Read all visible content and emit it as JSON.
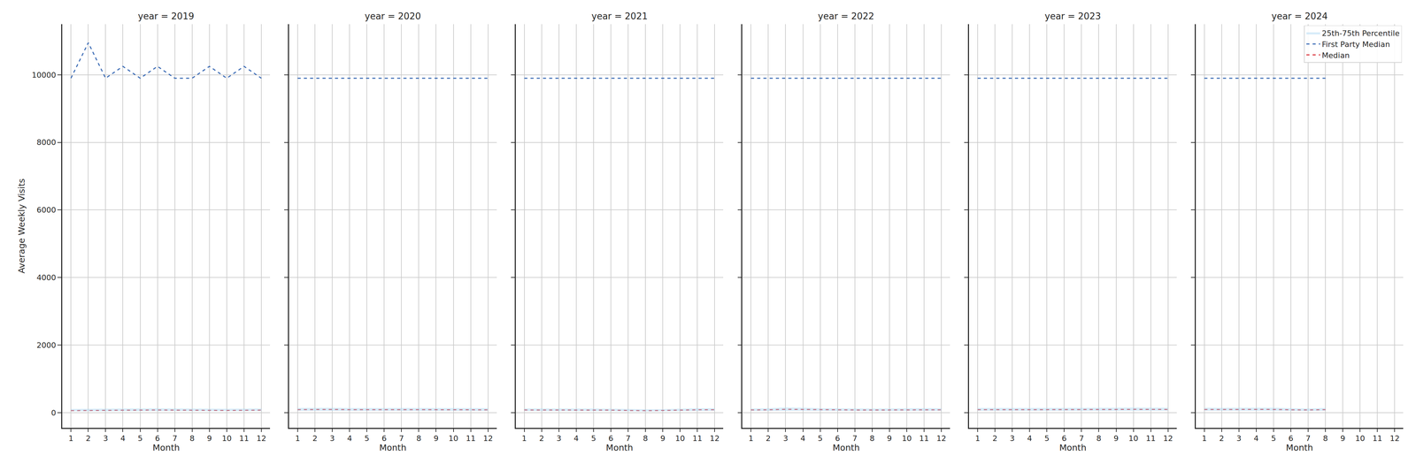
{
  "chart_data": [
    {
      "type": "line",
      "title": "year = 2019",
      "x_label": "Month",
      "y_label": "Average Weekly Visits",
      "x": [
        1,
        2,
        3,
        4,
        5,
        6,
        7,
        8,
        9,
        10,
        11,
        12
      ],
      "xlim": [
        0.5,
        12.5
      ],
      "xticks": [
        1,
        2,
        3,
        4,
        5,
        6,
        7,
        8,
        9,
        10,
        11,
        12
      ],
      "ylim": [
        -450,
        11500
      ],
      "yticks": [
        0,
        2000,
        4000,
        6000,
        8000,
        10000
      ],
      "grid": true,
      "series": [
        {
          "name": "Median",
          "color": "#d9333b",
          "line_style": "dashed",
          "values": [
            60,
            65,
            70,
            75,
            78,
            80,
            75,
            72,
            68,
            65,
            70,
            75
          ]
        },
        {
          "name": "First Party Median",
          "color": "#3b6bb5",
          "line_style": "dashed",
          "values": [
            9900,
            10950,
            9900,
            10250,
            9900,
            10250,
            9900,
            9900,
            10250,
            9900,
            10250,
            9900
          ]
        },
        {
          "name": "25th-75th Percentile",
          "type": "band",
          "color": "#a6d4f2",
          "lower": [
            40,
            42,
            45,
            48,
            50,
            52,
            48,
            46,
            44,
            42,
            45,
            48
          ],
          "upper": [
            110,
            115,
            120,
            125,
            128,
            130,
            125,
            120,
            118,
            115,
            120,
            125
          ]
        }
      ]
    },
    {
      "type": "line",
      "title": "year = 2020",
      "x_label": "Month",
      "tick_labels": "x",
      "x": [
        1,
        2,
        3,
        4,
        5,
        6,
        7,
        8,
        9,
        10,
        11,
        12
      ],
      "xlim": [
        0.5,
        12.5
      ],
      "xticks": [
        1,
        2,
        3,
        4,
        5,
        6,
        7,
        8,
        9,
        10,
        11,
        12
      ],
      "ylim": [
        -450,
        11500
      ],
      "yticks": [
        0,
        2000,
        4000,
        6000,
        8000,
        10000
      ],
      "grid": true,
      "series": [
        {
          "name": "Median",
          "color": "#d9333b",
          "line_style": "dashed",
          "values": [
            90,
            92,
            95,
            88,
            85,
            88,
            90,
            88,
            87,
            86,
            85,
            84
          ]
        },
        {
          "name": "First Party Median",
          "color": "#3b6bb5",
          "line_style": "dashed",
          "values": [
            9900,
            9900,
            9900,
            9900,
            9900,
            9900,
            9900,
            9900,
            9900,
            9900,
            9900,
            9900
          ]
        },
        {
          "name": "25th-75th Percentile",
          "type": "band",
          "color": "#a6d4f2",
          "lower": [
            55,
            56,
            58,
            54,
            52,
            54,
            55,
            54,
            53,
            52,
            52,
            51
          ],
          "upper": [
            140,
            142,
            145,
            138,
            135,
            138,
            140,
            138,
            137,
            136,
            135,
            134
          ]
        }
      ]
    },
    {
      "type": "line",
      "title": "year = 2021",
      "x_label": "Month",
      "tick_labels": "x",
      "x": [
        1,
        2,
        3,
        4,
        5,
        6,
        7,
        8,
        9,
        10,
        11,
        12
      ],
      "xlim": [
        0.5,
        12.5
      ],
      "xticks": [
        1,
        2,
        3,
        4,
        5,
        6,
        7,
        8,
        9,
        10,
        11,
        12
      ],
      "ylim": [
        -450,
        11500
      ],
      "yticks": [
        0,
        2000,
        4000,
        6000,
        8000,
        10000
      ],
      "grid": true,
      "series": [
        {
          "name": "Median",
          "color": "#d9333b",
          "line_style": "dashed",
          "values": [
            80,
            80,
            82,
            80,
            78,
            75,
            65,
            60,
            65,
            75,
            85,
            85
          ]
        },
        {
          "name": "First Party Median",
          "color": "#3b6bb5",
          "line_style": "dashed",
          "values": [
            9900,
            9900,
            9900,
            9900,
            9900,
            9900,
            9900,
            9900,
            9900,
            9900,
            9900,
            9900
          ]
        },
        {
          "name": "25th-75th Percentile",
          "type": "band",
          "color": "#a6d4f2",
          "lower": [
            48,
            48,
            50,
            48,
            47,
            45,
            40,
            36,
            40,
            45,
            52,
            52
          ],
          "upper": [
            125,
            125,
            128,
            125,
            122,
            118,
            105,
            98,
            105,
            118,
            132,
            132
          ]
        }
      ]
    },
    {
      "type": "line",
      "title": "year = 2022",
      "x_label": "Month",
      "tick_labels": "x",
      "x": [
        1,
        2,
        3,
        4,
        5,
        6,
        7,
        8,
        9,
        10,
        11,
        12
      ],
      "xlim": [
        0.5,
        12.5
      ],
      "xticks": [
        1,
        2,
        3,
        4,
        5,
        6,
        7,
        8,
        9,
        10,
        11,
        12
      ],
      "ylim": [
        -450,
        11500
      ],
      "yticks": [
        0,
        2000,
        4000,
        6000,
        8000,
        10000
      ],
      "grid": true,
      "series": [
        {
          "name": "Median",
          "color": "#d9333b",
          "line_style": "dashed",
          "values": [
            80,
            85,
            100,
            95,
            85,
            82,
            80,
            78,
            80,
            85,
            88,
            85
          ]
        },
        {
          "name": "First Party Median",
          "color": "#3b6bb5",
          "line_style": "dashed",
          "values": [
            9900,
            9900,
            9900,
            9900,
            9900,
            9900,
            9900,
            9900,
            9900,
            9900,
            9900,
            9900
          ]
        },
        {
          "name": "25th-75th Percentile",
          "type": "band",
          "color": "#a6d4f2",
          "lower": [
            48,
            52,
            60,
            57,
            52,
            50,
            48,
            47,
            48,
            52,
            53,
            52
          ],
          "upper": [
            125,
            132,
            155,
            148,
            132,
            128,
            125,
            122,
            125,
            132,
            136,
            132
          ]
        }
      ]
    },
    {
      "type": "line",
      "title": "year = 2023",
      "x_label": "Month",
      "tick_labels": "x",
      "x": [
        1,
        2,
        3,
        4,
        5,
        6,
        7,
        8,
        9,
        10,
        11,
        12
      ],
      "xlim": [
        0.5,
        12.5
      ],
      "xticks": [
        1,
        2,
        3,
        4,
        5,
        6,
        7,
        8,
        9,
        10,
        11,
        12
      ],
      "ylim": [
        -450,
        11500
      ],
      "yticks": [
        0,
        2000,
        4000,
        6000,
        8000,
        10000
      ],
      "grid": true,
      "series": [
        {
          "name": "Median",
          "color": "#d9333b",
          "line_style": "dashed",
          "values": [
            90,
            92,
            92,
            90,
            90,
            90,
            90,
            92,
            95,
            98,
            97,
            95
          ]
        },
        {
          "name": "First Party Median",
          "color": "#3b6bb5",
          "line_style": "dashed",
          "values": [
            9900,
            9900,
            9900,
            9900,
            9900,
            9900,
            9900,
            9900,
            9900,
            9900,
            9900,
            9900
          ]
        },
        {
          "name": "25th-75th Percentile",
          "type": "band",
          "color": "#a6d4f2",
          "lower": [
            55,
            56,
            56,
            55,
            55,
            55,
            55,
            56,
            58,
            60,
            59,
            58
          ],
          "upper": [
            140,
            142,
            142,
            140,
            140,
            140,
            140,
            142,
            147,
            152,
            150,
            147
          ]
        }
      ]
    },
    {
      "type": "line",
      "title": "year = 2024",
      "x_label": "Month",
      "tick_labels": "x",
      "legend": "upper right",
      "x": [
        1,
        2,
        3,
        4,
        5,
        6,
        7,
        8,
        9,
        10,
        11,
        12
      ],
      "xlim": [
        0.5,
        12.5
      ],
      "xticks": [
        1,
        2,
        3,
        4,
        5,
        6,
        7,
        8,
        9,
        10,
        11,
        12
      ],
      "ylim": [
        -450,
        11500
      ],
      "yticks": [
        0,
        2000,
        4000,
        6000,
        8000,
        10000
      ],
      "grid": true,
      "series": [
        {
          "name": "Median",
          "color": "#d9333b",
          "line_style": "dashed",
          "values": [
            95,
            92,
            95,
            97,
            95,
            85,
            80,
            90,
            null,
            null,
            null,
            null
          ]
        },
        {
          "name": "First Party Median",
          "color": "#3b6bb5",
          "line_style": "dashed",
          "values": [
            9900,
            9900,
            9900,
            9900,
            9900,
            9900,
            9900,
            9900,
            null,
            null,
            null,
            null
          ]
        },
        {
          "name": "25th-75th Percentile",
          "type": "band",
          "color": "#a6d4f2",
          "lower": [
            58,
            56,
            58,
            59,
            58,
            52,
            48,
            55,
            null,
            null,
            null,
            null
          ],
          "upper": [
            147,
            142,
            147,
            150,
            147,
            132,
            124,
            140,
            null,
            null,
            null,
            null
          ]
        }
      ]
    }
  ]
}
